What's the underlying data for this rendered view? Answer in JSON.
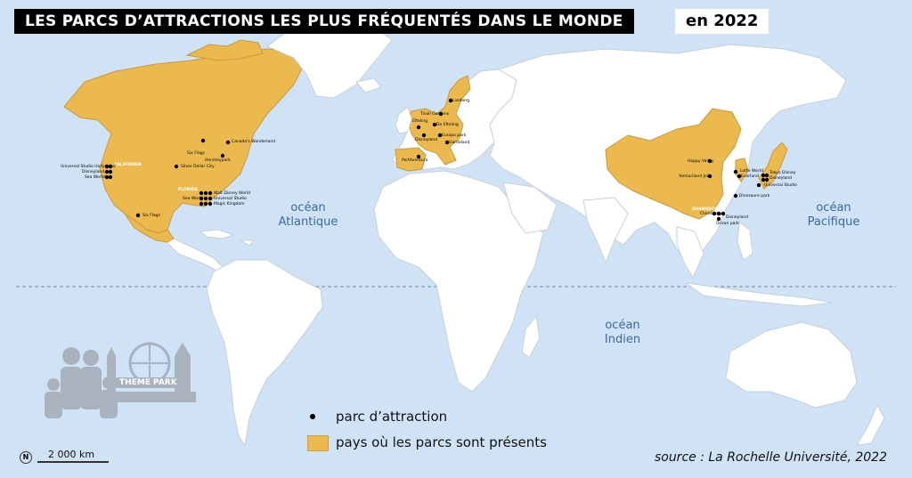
{
  "title": "LES PARCS D’ATTRACTIONS LES PLUS FRÉQUENTÉS DANS LE MONDE",
  "year": "en 2022",
  "oceans": {
    "atlantique_1": "océan",
    "atlantique_2": "Atlantique",
    "pacifique_1": "océan",
    "pacifique_2": "Pacifique",
    "indien_1": "océan",
    "indien_2": "Indien"
  },
  "legend": {
    "park": "parc d’attraction",
    "countries": "pays où les parcs sont présents"
  },
  "source": "source : La Rochelle Université, 2022",
  "scale": "2 000 km",
  "north_symbol": "N",
  "logo_text": "THEME PARK",
  "regions": {
    "california": "CALIFORNIA",
    "florida": "FLORIDA",
    "guangdong": "GUANGDONG"
  },
  "parks": {
    "universal_hollywood": "Universal Studio Hollywood",
    "disneyland_ca": "Disneyland",
    "sea_world_ca": "Sea World",
    "six_flags": "Six Flags",
    "canadas_wonderland": "Canada's Wonderland",
    "hersheypark": "Hersheypark",
    "silver_dollar_city": "Silver Dollar City",
    "walt_disney_world": "Walt Disney World",
    "sea_world_fl": "Sea World",
    "universal_studio_fl": "Universal Studio",
    "magic_kingdom": "Magic Kingdom",
    "six_flags_mexico": "Six Flags",
    "efteling": "Efteling",
    "tivoli_gardens": "Tivoli Gardens",
    "liseberg": "Liseberg",
    "de_efteling": "De Efteling",
    "disneyland_paris": "Disneyland",
    "europa_park": "Europa park",
    "gardaland": "Gardaland",
    "portaventura": "PortAventura",
    "happy_valley": "Happy Valley",
    "yomiuriland": "Yomiuriland Jolu",
    "lotte_world": "Lotte World",
    "everland": "Everland",
    "tokyo_disney": "Tokyo Disney",
    "disneyland_jp": "Disneyland",
    "universal_studio_jp": "Universal Studio",
    "dinosaur_park": "Dinosaure park",
    "chimelong": "Chimelong",
    "disneyland_hk": "Disneyland",
    "ocean_park": "Ocean park"
  },
  "colors": {
    "ocean": "#cfe2f6",
    "land": "#ffffff",
    "highlight": "#ecb94f",
    "ocean_label": "#3b67a3"
  }
}
